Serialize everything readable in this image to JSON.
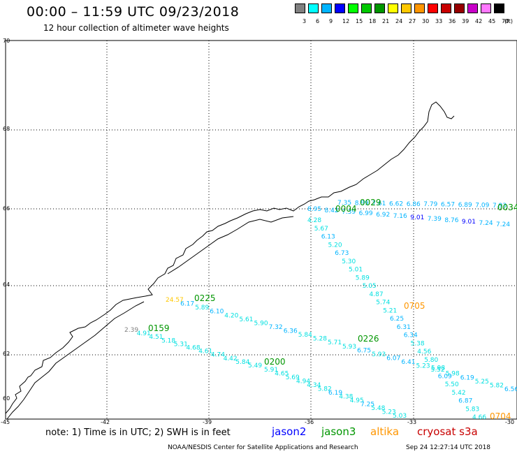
{
  "title": "00:00 – 11:59 UTC 09/23/2018",
  "subtitle": "12 hour collection of altimeter wave heights",
  "legend": {
    "unit": "(ft)",
    "bins": [
      {
        "label": "3",
        "color": "#808080"
      },
      {
        "label": "6",
        "color": "#00ffff"
      },
      {
        "label": "9",
        "color": "#00b4ff"
      },
      {
        "label": "12",
        "color": "#0000ff"
      },
      {
        "label": "15",
        "color": "#00ff00"
      },
      {
        "label": "18",
        "color": "#00c800"
      },
      {
        "label": "21",
        "color": "#009600"
      },
      {
        "label": "24",
        "color": "#ffff00"
      },
      {
        "label": "27",
        "color": "#ffc800"
      },
      {
        "label": "30",
        "color": "#ff9600"
      },
      {
        "label": "33",
        "color": "#ff0000"
      },
      {
        "label": "36",
        "color": "#c80000"
      },
      {
        "label": "39",
        "color": "#960000"
      },
      {
        "label": "42",
        "color": "#c800c8"
      },
      {
        "label": "45",
        "color": "#ff78ff"
      },
      {
        "label": "70",
        "color": "#000000"
      }
    ]
  },
  "axes": {
    "lat_labels": [
      "70",
      "68",
      "66",
      "64",
      "62",
      "60"
    ],
    "lon_labels": [
      "-45",
      "-42",
      "-39",
      "-36",
      "-33",
      "-30"
    ]
  },
  "tracks": [
    {
      "satellite": "jason3",
      "time": "0029",
      "color": "#009600",
      "values": [
        "7.35",
        "8.99",
        "7.61",
        "6.62",
        "6.86",
        "7.79",
        "6.57",
        "6.89",
        "7.09",
        "7.93"
      ]
    },
    {
      "satellite": "jason3",
      "time": "0034",
      "color": "#009600",
      "values": []
    },
    {
      "satellite": "jason3",
      "time": "0004",
      "color": "#009600",
      "values": [
        "8.95",
        "8.42",
        "7.39",
        "6.99",
        "6.92",
        "7.16",
        "9.01",
        "7.39",
        "8.76",
        "9.01",
        "7.24",
        "7.24"
      ]
    },
    {
      "satellite": "altika",
      "time": "0705",
      "color": "#ff9600",
      "values": [
        "4.28",
        "5.67",
        "6.13",
        "5.20",
        "6.73",
        "5.30",
        "5.01",
        "5.89",
        "5.05",
        "4.87",
        "5.74",
        "5.21",
        "6.25",
        "6.31",
        "6.34",
        "5.38",
        "4.56",
        "5.80",
        "5.98",
        "6.09",
        "5.50",
        "5.42",
        "6.87",
        "5.83",
        "4.66"
      ]
    },
    {
      "satellite": "jason3",
      "time": "0225",
      "color": "#009600",
      "values": [
        "24.57",
        "6.17",
        "5.89",
        "6.10",
        "4.20",
        "5.61",
        "5.90",
        "7.32",
        "6.36",
        "5.84",
        "5.28",
        "5.71",
        "5.93",
        "6.75",
        "5.93",
        "6.07",
        "6.41",
        "5.23",
        "5.52",
        "5.98",
        "6.19",
        "5.25",
        "5.82",
        "6.56"
      ]
    },
    {
      "satellite": "jason3",
      "time": "0226",
      "color": "#009600",
      "values": []
    },
    {
      "satellite": "jason3",
      "time": "0159",
      "color": "#009600",
      "values": [
        "2.39",
        "4.91",
        "4.51",
        "5.18",
        "5.31",
        "4.68",
        "4.61",
        "4.74",
        "4.42",
        "5.84",
        "5.49"
      ]
    },
    {
      "satellite": "jason3",
      "time": "0200",
      "color": "#009600",
      "values": [
        "5.91",
        "4.65",
        "5.69",
        "4.94",
        "4.34",
        "5.82",
        "6.19",
        "4.38",
        "4.95",
        "7.25",
        "5.48",
        "5.23",
        "5.03"
      ]
    },
    {
      "satellite": "altika",
      "time": "0704",
      "color": "#ff9600",
      "values": []
    }
  ],
  "note": "note: 1) Time is in UTC; 2) SWH is in feet",
  "satellites": [
    {
      "name": "jason2",
      "color": "#0000ff"
    },
    {
      "name": "jason3",
      "color": "#009600"
    },
    {
      "name": "altika",
      "color": "#ff9600"
    },
    {
      "name": "cryosat s3a",
      "color": "#c80000"
    }
  ],
  "credit": "NOAA/NESDIS Center for Satellite Applications and Research",
  "timestamp": "Sep 24 12:27:14 UTC 2018"
}
